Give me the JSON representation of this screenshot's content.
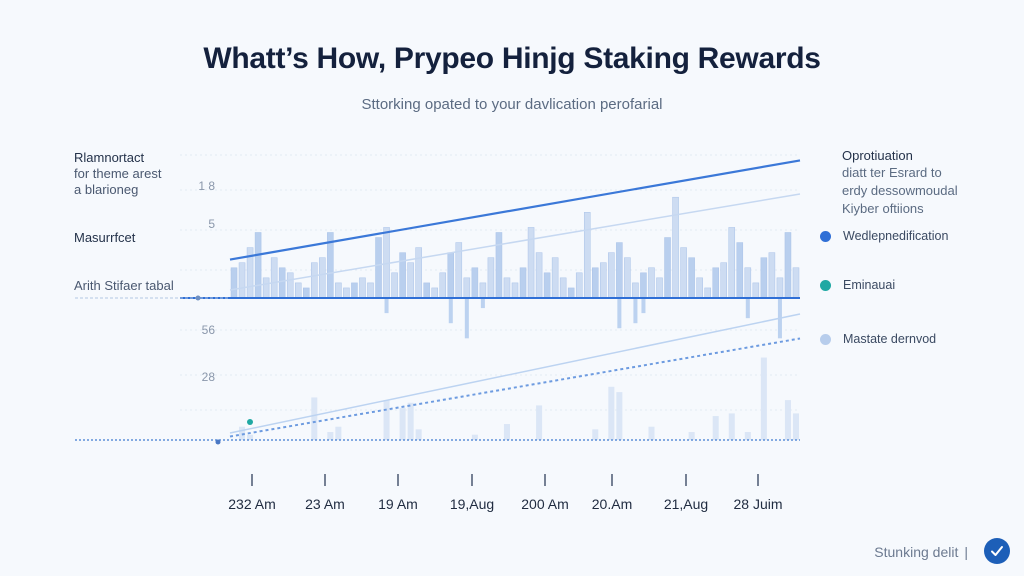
{
  "chart_data": {
    "type": "bar",
    "title": "Whatt’s How, Prypeo Hinjg Staking Rewards",
    "subtitle": "Sttorking opated to your davlication perofarial",
    "x_tick_labels": [
      "232 Am",
      "23 Am",
      "19 Am",
      "19,Aug",
      "200 Am",
      "20.Am",
      "21,Aug",
      "28 Juim"
    ],
    "y_tick_labels": [
      "1 8",
      "5",
      "56",
      "28"
    ],
    "legend": [
      {
        "name": "Wedlepnedification",
        "color": "#2f6fd6"
      },
      {
        "name": "Eminauai",
        "color": "#1fa8a3"
      },
      {
        "name": "Mastate dernvod",
        "color": "#b7cdec"
      }
    ],
    "upper_bars": [
      6,
      7,
      10,
      13,
      4,
      8,
      6,
      5,
      3,
      2,
      7,
      8,
      13,
      3,
      2,
      3,
      4,
      3,
      12,
      14,
      5,
      9,
      7,
      10,
      3,
      2,
      5,
      9,
      11,
      4,
      6,
      3,
      8,
      13,
      4,
      3,
      6,
      14,
      9,
      5,
      8,
      4,
      2,
      5,
      17,
      6,
      7,
      9,
      11,
      8,
      3,
      5,
      6,
      4,
      12,
      20,
      10,
      8,
      4,
      2,
      6,
      7,
      14,
      11,
      6,
      3,
      8,
      9,
      4,
      13,
      6
    ],
    "upper_negative": [
      0,
      0,
      0,
      0,
      0,
      0,
      0,
      0,
      0,
      0,
      0,
      0,
      0,
      0,
      0,
      0,
      0,
      0,
      0,
      -3,
      0,
      0,
      0,
      0,
      0,
      0,
      0,
      -5,
      0,
      -8,
      0,
      -2,
      0,
      0,
      0,
      0,
      0,
      0,
      0,
      0,
      0,
      0,
      0,
      0,
      0,
      0,
      0,
      0,
      -6,
      0,
      -5,
      -3,
      0,
      0,
      0,
      0,
      0,
      0,
      0,
      0,
      0,
      0,
      0,
      0,
      -4,
      0,
      0,
      0,
      -8,
      0,
      0
    ],
    "lower_bars": [
      0,
      5,
      2,
      0,
      0,
      0,
      0,
      0,
      0,
      0,
      16,
      0,
      3,
      5,
      0,
      0,
      0,
      0,
      0,
      15,
      0,
      12,
      14,
      4,
      0,
      0,
      0,
      0,
      0,
      0,
      2,
      0,
      0,
      0,
      6,
      0,
      0,
      0,
      13,
      0,
      0,
      0,
      0,
      0,
      0,
      4,
      0,
      20,
      18,
      0,
      0,
      0,
      5,
      0,
      0,
      0,
      0,
      3,
      0,
      0,
      9,
      0,
      10,
      0,
      3,
      0,
      31,
      0,
      0,
      15,
      10
    ],
    "upper_trend": [
      [
        0,
        1.2
      ],
      [
        1,
        4.3
      ]
    ],
    "upper_faint_trend": [
      [
        0,
        0.2
      ],
      [
        1,
        2.6
      ]
    ],
    "lower_trend": [
      [
        0,
        0.1
      ],
      [
        1,
        2.9
      ]
    ],
    "lower_faint_trend": [
      [
        0,
        0.2
      ],
      [
        1,
        3.6
      ]
    ]
  },
  "labels": {
    "left_top": [
      "Rlamnortact",
      "for theme arest",
      "a blarioneg"
    ],
    "left_mid": "Masurrfcet",
    "left_low": "Arith Stifaer tabal",
    "right_title": "Oprotiuation",
    "right_desc": [
      "diatt ter Esrard to",
      "erdy dessowmoudal",
      "Kiyber oftiions"
    ]
  },
  "footer": {
    "text": "Stunking delit",
    "sep": "|"
  }
}
